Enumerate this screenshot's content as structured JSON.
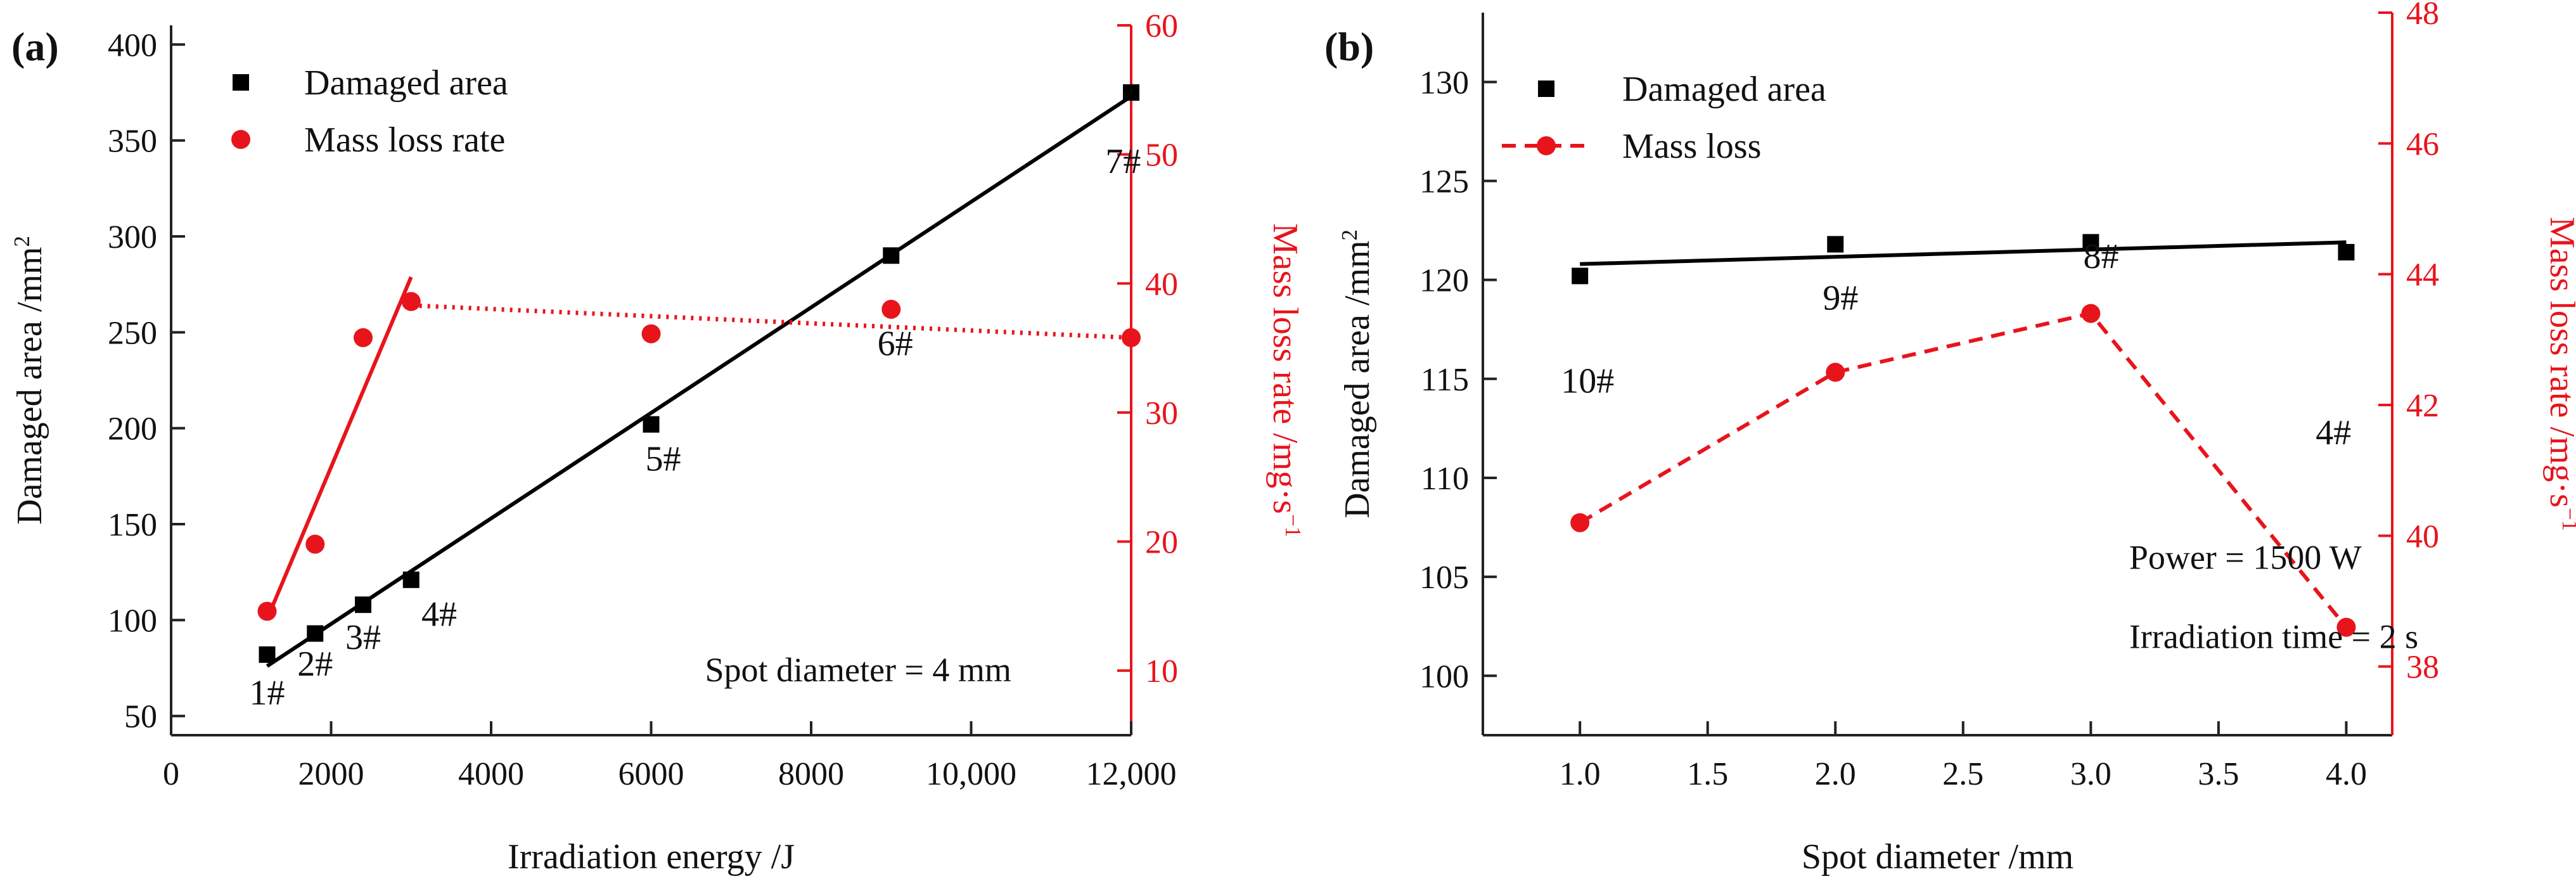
{
  "figure": {
    "panels": [
      "(a)",
      "(b)"
    ]
  },
  "chart_data": [
    {
      "panel_label": "(a)",
      "type": "scatter",
      "xlabel": "Irradiation energy /J",
      "ylabel": "Damaged area /mm",
      "ylabel_sup": "2",
      "y2label": "Mass loss rate /mg·s",
      "y2label_sup": "−1",
      "xlim": [
        0,
        12000
      ],
      "ylim": [
        40,
        410
      ],
      "y2lim": [
        5,
        60
      ],
      "xticks": [
        0,
        2000,
        4000,
        6000,
        8000,
        10000,
        12000
      ],
      "xtick_labels": [
        "0",
        "2000",
        "4000",
        "6000",
        "8000",
        "10,000",
        "12,000"
      ],
      "yticks": [
        50,
        100,
        150,
        200,
        250,
        300,
        350,
        400
      ],
      "y2ticks": [
        10,
        20,
        30,
        40,
        50,
        60
      ],
      "series": [
        {
          "name": "Damaged area",
          "axis": "left",
          "color": "#000000",
          "marker": "square",
          "x": [
            1200,
            1800,
            2400,
            3000,
            6000,
            9000,
            12000
          ],
          "y": [
            82,
            93,
            108,
            121,
            202,
            290,
            375
          ]
        },
        {
          "name": "Mass loss rate",
          "axis": "right",
          "color": "#e8141c",
          "marker": "circle",
          "x": [
            1200,
            1800,
            2400,
            3000,
            6000,
            9000,
            12000
          ],
          "y": [
            14.6,
            19.8,
            35.8,
            38.6,
            36.1,
            38.0,
            35.8
          ]
        }
      ],
      "fits": [
        {
          "name": "area-fit",
          "axis": "left",
          "style": "solid",
          "color": "#000000",
          "x": [
            1200,
            12000
          ],
          "y": [
            76,
            373
          ]
        },
        {
          "name": "mass-fit-rising",
          "axis": "right",
          "style": "solid",
          "color": "#e8141c",
          "x": [
            1200,
            3000
          ],
          "y": [
            14.0,
            40.5
          ]
        },
        {
          "name": "mass-fit-flat",
          "axis": "right",
          "style": "dotted",
          "color": "#e8141c",
          "x": [
            3000,
            12000
          ],
          "y": [
            38.3,
            35.8
          ]
        }
      ],
      "point_labels": [
        {
          "text": "1#",
          "x": 1200,
          "y": 56
        },
        {
          "text": "2#",
          "x": 1800,
          "y": 71
        },
        {
          "text": "3#",
          "x": 2400,
          "y": 85
        },
        {
          "text": "4#",
          "x": 3350,
          "y": 97
        },
        {
          "text": "5#",
          "x": 6150,
          "y": 178
        },
        {
          "text": "6#",
          "x": 9050,
          "y": 238
        },
        {
          "text": "7#",
          "x": 11900,
          "y": 333
        }
      ],
      "annotations": [
        {
          "text": "Spot diameter = 4 mm",
          "x": 10000,
          "y": 68
        }
      ],
      "legend": {
        "position": "top-left",
        "entries": [
          {
            "label": "Damaged area",
            "color": "#000000",
            "marker": "square"
          },
          {
            "label": "Mass loss rate",
            "color": "#e8141c",
            "marker": "circle"
          }
        ]
      }
    },
    {
      "panel_label": "(b)",
      "type": "line",
      "xlabel": "Spot diameter /mm",
      "ylabel": "Damaged area /mm",
      "ylabel_sup": "2",
      "y2label": "Mass loss rate /mg·s",
      "y2label_sup": "−1",
      "xlim": [
        0.62,
        4.18
      ],
      "ylim": [
        97,
        133.5
      ],
      "y2lim": [
        36.95,
        48
      ],
      "xticks": [
        1.0,
        1.5,
        2.0,
        2.5,
        3.0,
        3.5,
        4.0
      ],
      "xtick_labels": [
        "1.0",
        "1.5",
        "2.0",
        "2.5",
        "3.0",
        "3.5",
        "4.0"
      ],
      "yticks": [
        100,
        105,
        110,
        115,
        120,
        125,
        130
      ],
      "y2ticks": [
        38,
        40,
        42,
        44,
        46,
        48
      ],
      "series": [
        {
          "name": "Damaged area",
          "axis": "left",
          "color": "#000000",
          "marker": "square",
          "x": [
            1.0,
            2.0,
            3.0,
            4.0
          ],
          "y": [
            120.2,
            121.8,
            121.9,
            121.4
          ]
        },
        {
          "name": "Mass loss",
          "axis": "right",
          "color": "#e8141c",
          "marker": "circle",
          "line": "dashed",
          "x": [
            1.0,
            2.0,
            3.0,
            4.0
          ],
          "y": [
            40.2,
            42.5,
            43.4,
            38.6
          ]
        }
      ],
      "fits": [
        {
          "name": "area-fit",
          "axis": "left",
          "style": "solid",
          "color": "#000000",
          "x": [
            1.0,
            4.0
          ],
          "y": [
            120.8,
            121.9
          ]
        }
      ],
      "point_labels": [
        {
          "text": "10#",
          "x": 1.03,
          "y": 114.3
        },
        {
          "text": "9#",
          "x": 2.02,
          "y": 118.5
        },
        {
          "text": "8#",
          "x": 3.04,
          "y": 120.6
        },
        {
          "text": "4#",
          "x": 3.95,
          "y": 111.7
        }
      ],
      "annotations": [
        {
          "text": "Power = 1500 W",
          "x": 3.15,
          "y": 105.4
        },
        {
          "text": "Irradiation time = 2 s",
          "x": 3.15,
          "y": 101.4
        }
      ],
      "legend": {
        "position": "top-left",
        "entries": [
          {
            "label": "Damaged area",
            "color": "#000000",
            "marker": "square"
          },
          {
            "label": "Mass loss",
            "color": "#e8141c",
            "marker": "circle",
            "line": "dashed"
          }
        ]
      }
    }
  ]
}
